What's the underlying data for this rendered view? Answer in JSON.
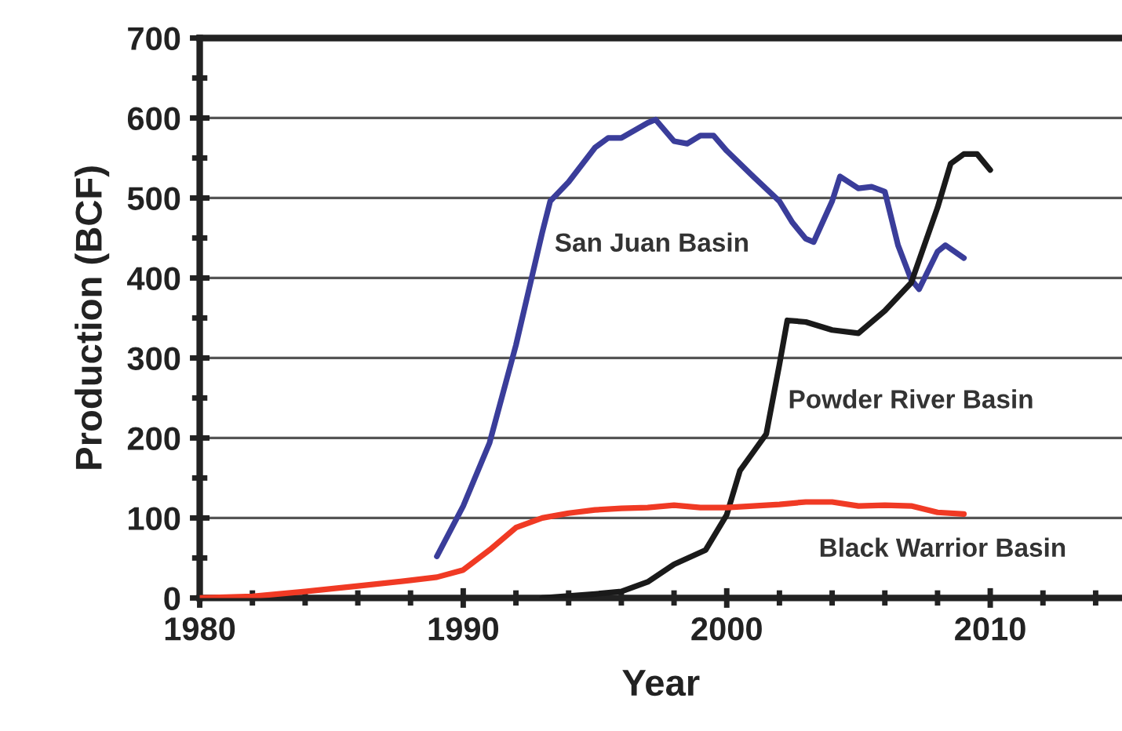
{
  "chart_data": {
    "type": "line",
    "xlabel": "Year",
    "ylabel": "Production (BCF)",
    "series": [
      {
        "name": "San Juan Basin",
        "color": "#3a3d9a",
        "x": [
          1989,
          1990,
          1991,
          1992,
          1993,
          1993.3,
          1994,
          1995,
          1995.5,
          1996,
          1997,
          1997.3,
          1998,
          1998.5,
          1999,
          1999.5,
          2000,
          2001,
          2002,
          2002.5,
          2003,
          2003.3,
          2004,
          2004.3,
          2005,
          2005.5,
          2006,
          2006.5,
          2007,
          2007.3,
          2008,
          2008.3,
          2009
        ],
        "values": [
          52,
          115,
          194,
          316,
          457,
          496,
          520,
          563,
          575,
          575,
          594,
          598,
          571,
          568,
          578,
          578,
          559,
          527,
          496,
          469,
          449,
          445,
          496,
          527,
          512,
          514,
          508,
          441,
          398,
          386,
          433,
          441,
          425
        ]
      },
      {
        "name": "Powder River Basin",
        "color": "#1a1a1a",
        "x": [
          1993,
          1995,
          1996,
          1997,
          1998,
          1999.2,
          2000,
          2000.5,
          2001,
          2001.5,
          2002,
          2002.3,
          2003,
          2004,
          2005,
          2006,
          2007,
          2008,
          2008.5,
          2009,
          2009.5,
          2010
        ],
        "values": [
          0,
          5,
          8,
          20,
          42,
          60,
          104,
          159,
          182,
          205,
          292,
          347,
          345,
          335,
          331,
          359,
          394,
          488,
          543,
          555,
          555,
          535
        ]
      },
      {
        "name": "Black Warrior Basin",
        "color": "#f03a24",
        "x": [
          1980,
          1982,
          1984,
          1986,
          1988,
          1989,
          1990,
          1991,
          1992,
          1993,
          1994,
          1995,
          1996,
          1997,
          1998,
          1999,
          2000,
          2001,
          2002,
          2003,
          2004,
          2005,
          2006,
          2007,
          2008,
          2009
        ],
        "values": [
          0,
          2,
          8,
          15,
          22,
          26,
          35,
          60,
          88,
          100,
          106,
          110,
          112,
          113,
          116,
          113,
          113,
          115,
          117,
          120,
          120,
          115,
          116,
          115,
          107,
          105
        ]
      }
    ],
    "xlim": [
      1980,
      2015
    ],
    "xticks": [
      1980,
      {
        "value": 1982,
        "label": null
      },
      {
        "value": 1984,
        "label": null
      },
      {
        "value": 1986,
        "label": null
      },
      {
        "value": 1988,
        "label": null
      },
      1990,
      {
        "value": 1992,
        "label": null
      },
      {
        "value": 1994,
        "label": null
      },
      {
        "value": 1996,
        "label": null
      },
      {
        "value": 1998,
        "label": null
      },
      2000,
      {
        "value": 2002,
        "label": null
      },
      {
        "value": 2004,
        "label": null
      },
      {
        "value": 2006,
        "label": null
      },
      {
        "value": 2008,
        "label": null
      },
      2010,
      {
        "value": 2012,
        "label": null
      },
      {
        "value": 2014,
        "label": null
      }
    ],
    "ylim": [
      0,
      700
    ],
    "yticks": [
      0,
      {
        "value": 50,
        "label": null
      },
      100,
      {
        "value": 150,
        "label": null
      },
      200,
      {
        "value": 250,
        "label": null
      },
      300,
      {
        "value": 350,
        "label": null
      },
      400,
      {
        "value": 450,
        "label": null
      },
      500,
      {
        "value": 550,
        "label": null
      },
      600,
      {
        "value": 650,
        "label": null
      },
      700
    ],
    "grid": "y",
    "legend": false,
    "marker": "none",
    "line_style": "solid"
  }
}
